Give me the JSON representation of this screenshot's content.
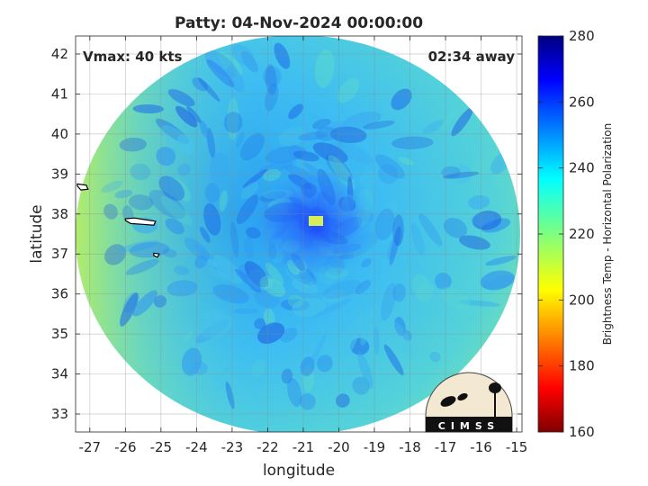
{
  "chart_data": {
    "type": "heatmap",
    "title": "Patty: 04-Nov-2024 00:00:00",
    "xlabel": "longitude",
    "ylabel": "latitude",
    "xlim": [
      -27.4,
      -14.85
    ],
    "ylim": [
      32.55,
      42.45
    ],
    "x_ticks": [
      -27,
      -26,
      -25,
      -24,
      -23,
      -22,
      -21,
      -20,
      -19,
      -18,
      -17,
      -16,
      -15
    ],
    "y_ticks": [
      33,
      34,
      35,
      36,
      37,
      38,
      39,
      40,
      41,
      42
    ],
    "grid": true,
    "annotations": {
      "vmax": "Vmax: 40 kts",
      "time_offset": "02:34 away"
    },
    "storm_center": {
      "lon": -20.8,
      "lat": 37.8
    },
    "land_outlines": [
      {
        "lon": [
          -27.35,
          -27.1,
          -27.05,
          -27.25,
          -27.35
        ],
        "lat": [
          38.75,
          38.72,
          38.62,
          38.6,
          38.7
        ]
      },
      {
        "lon": [
          -26.0,
          -25.75,
          -25.4,
          -25.15,
          -25.2,
          -25.5,
          -25.85,
          -26.0
        ],
        "lat": [
          37.88,
          37.9,
          37.85,
          37.82,
          37.72,
          37.74,
          37.76,
          37.84
        ]
      },
      {
        "lon": [
          -25.2,
          -25.05,
          -25.1,
          -25.2
        ],
        "lat": [
          37.02,
          37.0,
          36.92,
          36.96
        ]
      }
    ],
    "colorbar": {
      "label": "Brightness Temp - Horizontal Polarization",
      "range": [
        160,
        280
      ],
      "ticks": [
        160,
        180,
        200,
        220,
        240,
        260,
        280
      ],
      "colormap": "jet"
    },
    "logo_text": "CIMSS"
  }
}
